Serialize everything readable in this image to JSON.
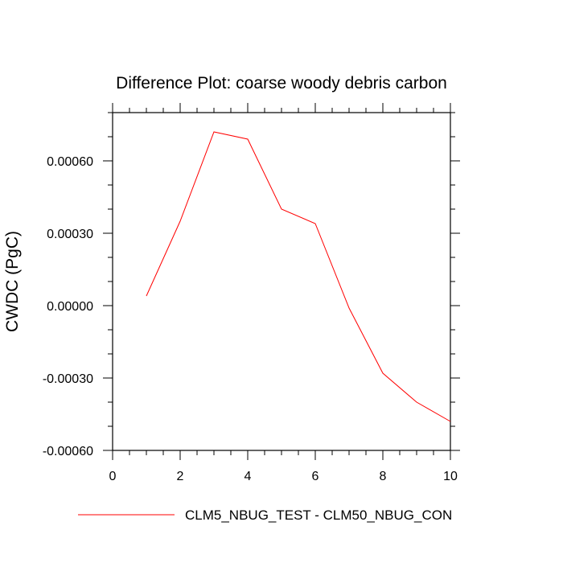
{
  "chart_data": {
    "type": "line",
    "title": "Difference Plot: coarse woody debris carbon",
    "xlabel": "",
    "ylabel": "CWDC  (PgC)",
    "xlim": [
      0,
      10
    ],
    "ylim": [
      -0.0006,
      0.0008
    ],
    "x_ticks": [
      0,
      2,
      4,
      6,
      8,
      10
    ],
    "y_ticks": [
      -0.0006,
      -0.0003,
      0.0,
      0.0003,
      0.0006
    ],
    "x_tick_labels": [
      "0",
      "2",
      "4",
      "6",
      "8",
      "10"
    ],
    "y_tick_labels": [
      "-0.00060",
      "-0.00030",
      "0.00000",
      "0.00030",
      "0.00060"
    ],
    "grid": false,
    "legend_position": "bottom",
    "series": [
      {
        "name": "CLM5_NBUG_TEST - CLM50_NBUG_CON",
        "color": "#ff0000",
        "x": [
          1,
          2,
          3,
          4,
          5,
          6,
          7,
          8,
          9,
          10
        ],
        "y": [
          4e-05,
          0.00035,
          0.00072,
          0.00069,
          0.0004,
          0.00034,
          -1e-05,
          -0.00028,
          -0.0004,
          -0.00048
        ]
      }
    ]
  }
}
